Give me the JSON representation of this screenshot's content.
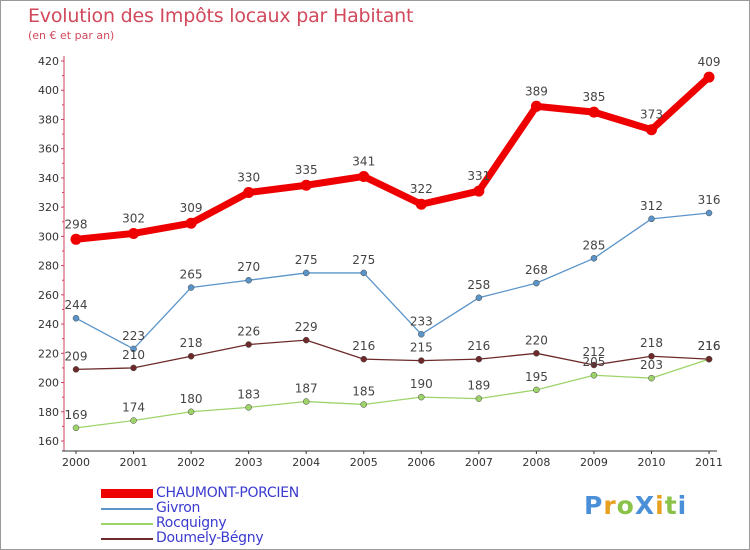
{
  "title": "Evolution des Impôts locaux par Habitant",
  "subtitle": "(en € et par an)",
  "logo": {
    "text": "ProXiti",
    "letters": [
      {
        "ch": "P",
        "color": "#4a90d9"
      },
      {
        "ch": "r",
        "color": "#e8a020"
      },
      {
        "ch": "o",
        "color": "#8bc34a"
      },
      {
        "ch": "X",
        "color": "#4a90d9"
      },
      {
        "ch": "i",
        "color": "#e8a020"
      },
      {
        "ch": "t",
        "color": "#8bc34a"
      },
      {
        "ch": "i",
        "color": "#4a90d9"
      }
    ]
  },
  "chart_data": {
    "type": "line",
    "x": [
      "2000",
      "2001",
      "2002",
      "2003",
      "2004",
      "2005",
      "2006",
      "2007",
      "2008",
      "2009",
      "2010",
      "2011"
    ],
    "ylim": [
      160,
      420
    ],
    "yticks": [
      160,
      180,
      200,
      220,
      240,
      260,
      280,
      300,
      320,
      340,
      360,
      380,
      400,
      420
    ],
    "grid": false,
    "legend_position": "bottom-left",
    "series": [
      {
        "name": "CHAUMONT-PORCIEN",
        "color": "#ee0000",
        "values": [
          298,
          302,
          309,
          330,
          335,
          341,
          322,
          331,
          389,
          385,
          373,
          409
        ]
      },
      {
        "name": "Givron",
        "color": "#5a94c8",
        "values": [
          244,
          223,
          265,
          270,
          275,
          275,
          233,
          258,
          268,
          285,
          312,
          316
        ]
      },
      {
        "name": "Rocquigny",
        "color": "#9ed36a",
        "values": [
          169,
          174,
          180,
          183,
          187,
          185,
          190,
          189,
          195,
          205,
          203,
          216
        ]
      },
      {
        "name": "Doumely-Bégny",
        "color": "#6e2a2a",
        "values": [
          209,
          210,
          218,
          226,
          229,
          216,
          215,
          216,
          220,
          212,
          218,
          216
        ]
      }
    ]
  }
}
